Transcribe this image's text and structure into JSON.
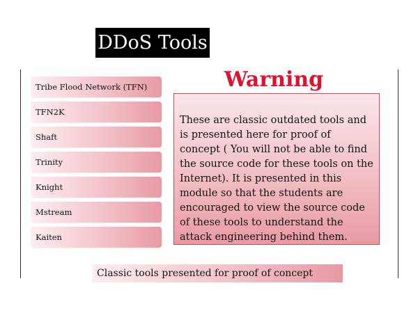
{
  "title": "DDoS Tools",
  "tools": [
    "Tribe Flood Network (TFN)",
    "TFN2K",
    "Shaft",
    "Trinity",
    "Knight",
    "Mstream",
    "Kaiten"
  ],
  "warning": {
    "heading": "Warning",
    "body": "These are classic outdated tools and is presented here for proof of concept ( You will not be able to find the source code for these tools on the Internet). It is presented in this module so that the students are encouraged to view the source code of these tools to understand the attack engineering behind them."
  },
  "caption": "Classic tools presented for proof of concept",
  "colors": {
    "title_background": "#000000",
    "warning_heading": "#e0102e",
    "accent_pink": "#e89aa4"
  }
}
